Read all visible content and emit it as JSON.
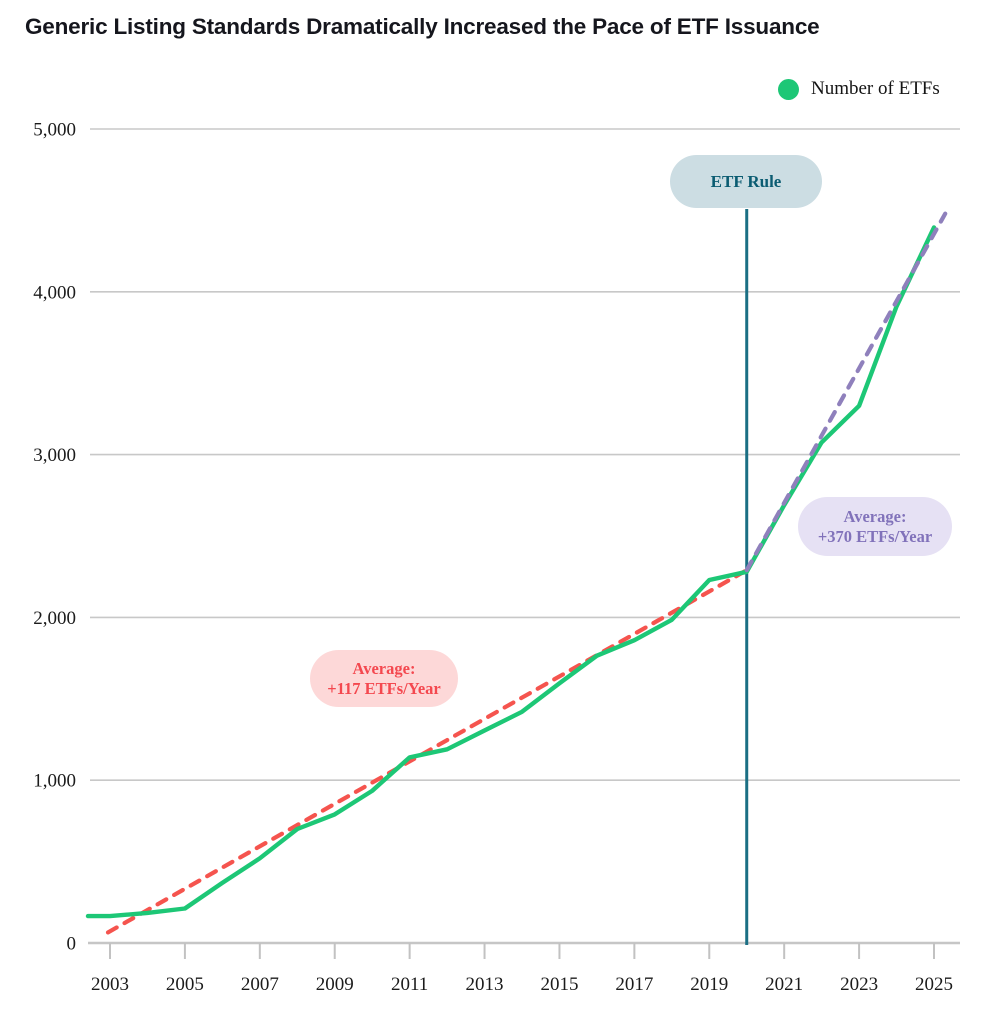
{
  "title": "Generic Listing Standards Dramatically Increased the Pace of ETF Issuance",
  "legend": {
    "label": "Number of ETFs",
    "marker_color": "#1dc776"
  },
  "annotations": {
    "etf_rule": {
      "label": "ETF Rule",
      "year": 2020,
      "badge_bg": "#ccdde3",
      "text_color": "#0b5c72",
      "line_color": "#1b6f84"
    },
    "avg_pre": {
      "line1": "Average:",
      "line2": "+117 ETFs/Year",
      "badge_bg": "#fdd8d8",
      "text_color": "#f4484f"
    },
    "avg_post": {
      "line1": "Average:",
      "line2": "+370 ETFs/Year",
      "badge_bg": "#e6e1f4",
      "text_color": "#8172ba"
    }
  },
  "chart_data": {
    "type": "line",
    "title": "Generic Listing Standards Dramatically Increased the Pace of ETF Issuance",
    "xlabel": "",
    "ylabel": "",
    "ylim": [
      0,
      5000
    ],
    "grid": "horizontal",
    "legend_position": "top-right",
    "series": [
      {
        "name": "Number of ETFs",
        "color": "#1dc776",
        "x": [
          2003,
          2004,
          2005,
          2006,
          2007,
          2008,
          2009,
          2010,
          2011,
          2012,
          2013,
          2014,
          2015,
          2016,
          2017,
          2018,
          2019,
          2020,
          2021,
          2022,
          2023,
          2024,
          2025
        ],
        "values": [
          165,
          185,
          212,
          370,
          520,
          700,
          790,
          935,
          1140,
          1190,
          1305,
          1420,
          1595,
          1765,
          1860,
          1985,
          2230,
          2280,
          2690,
          3075,
          3300,
          3910,
          4395
        ]
      }
    ],
    "trend_lines": [
      {
        "name": "Pre-rule average: +117 ETFs/Year",
        "color": "#f5544e",
        "style": "dashed",
        "points": [
          [
            2003,
            65
          ],
          [
            2020,
            2290
          ]
        ]
      },
      {
        "name": "Post-rule average: +370 ETFs/Year",
        "color": "#8f80bc",
        "style": "dashed",
        "points": [
          [
            2020,
            2290
          ],
          [
            2025.3,
            4480
          ]
        ]
      }
    ],
    "vline": {
      "x": 2020,
      "label": "ETF Rule",
      "color": "#1b6f84"
    },
    "yticks": [
      {
        "value": 0,
        "label": "0"
      },
      {
        "value": 1000,
        "label": "1,000"
      },
      {
        "value": 2000,
        "label": "2,000"
      },
      {
        "value": 3000,
        "label": "3,000"
      },
      {
        "value": 4000,
        "label": "4,000"
      },
      {
        "value": 5000,
        "label": "5,000"
      }
    ],
    "xticks": [
      {
        "value": 2003,
        "label": "2003"
      },
      {
        "value": 2005,
        "label": "2005"
      },
      {
        "value": 2007,
        "label": "2007"
      },
      {
        "value": 2009,
        "label": "2009"
      },
      {
        "value": 2011,
        "label": "2011"
      },
      {
        "value": 2013,
        "label": "2013"
      },
      {
        "value": 2015,
        "label": "2015"
      },
      {
        "value": 2017,
        "label": "2017"
      },
      {
        "value": 2019,
        "label": "2019"
      },
      {
        "value": 2021,
        "label": "2021"
      },
      {
        "value": 2023,
        "label": "2023"
      },
      {
        "value": 2025,
        "label": "2025"
      }
    ]
  }
}
